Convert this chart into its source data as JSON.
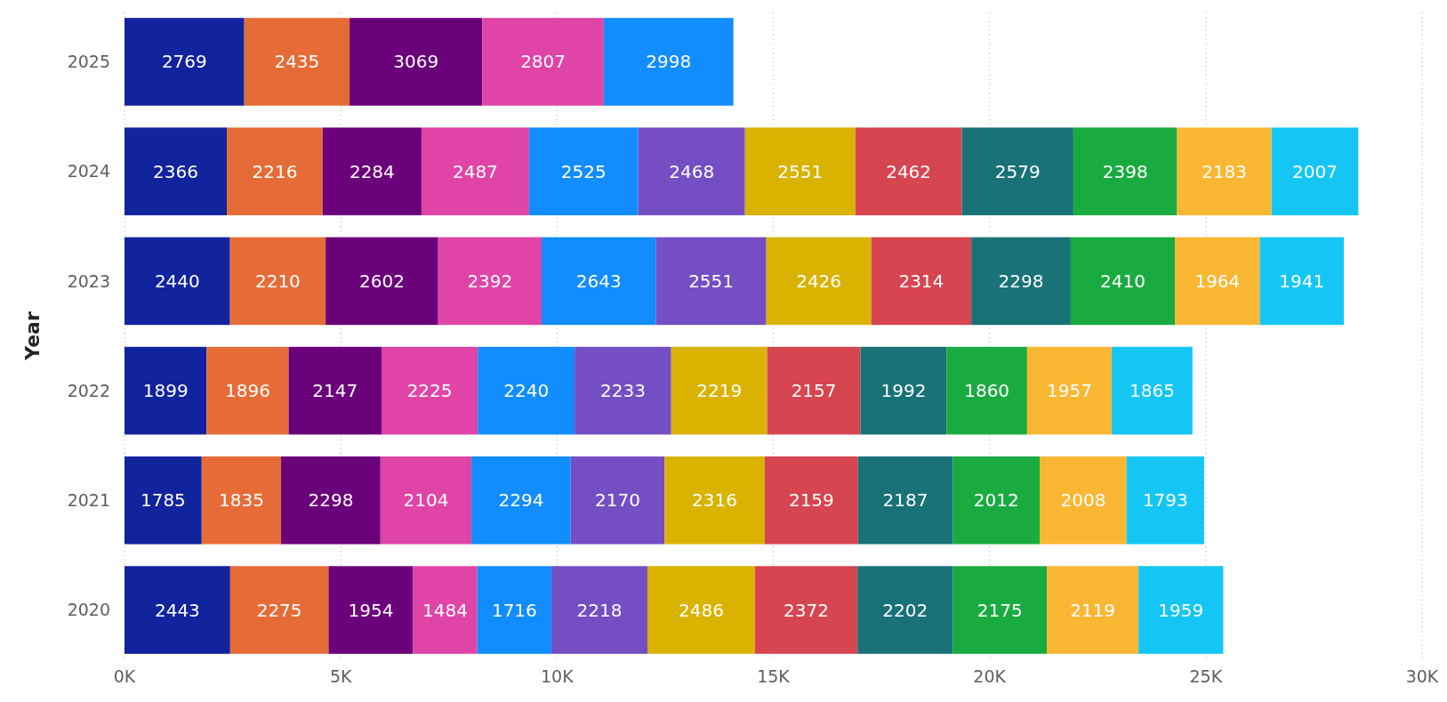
{
  "chart_data": {
    "type": "bar",
    "orientation": "horizontal",
    "stacked": true,
    "ylabel": "Year",
    "categories": [
      "2025",
      "2024",
      "2023",
      "2022",
      "2021",
      "2020"
    ],
    "series": [
      {
        "color": "#12239e",
        "values": [
          2769,
          2366,
          2440,
          1899,
          1785,
          2443
        ]
      },
      {
        "color": "#e66c37",
        "values": [
          2435,
          2216,
          2210,
          1896,
          1835,
          2275
        ]
      },
      {
        "color": "#6b007b",
        "values": [
          3069,
          2284,
          2602,
          2147,
          2298,
          1954
        ]
      },
      {
        "color": "#e044a7",
        "values": [
          2807,
          2487,
          2392,
          2225,
          2104,
          1484
        ]
      },
      {
        "color": "#118dff",
        "values": [
          2998,
          2525,
          2643,
          2240,
          2294,
          1716
        ]
      },
      {
        "color": "#744ec2",
        "values": [
          null,
          2468,
          2551,
          2233,
          2170,
          2218
        ]
      },
      {
        "color": "#d9b300",
        "values": [
          null,
          2551,
          2426,
          2219,
          2316,
          2486
        ]
      },
      {
        "color": "#d64550",
        "values": [
          null,
          2462,
          2314,
          2157,
          2159,
          2372
        ]
      },
      {
        "color": "#197278",
        "values": [
          null,
          2579,
          2298,
          1992,
          2187,
          2202
        ]
      },
      {
        "color": "#1aab40",
        "values": [
          null,
          2398,
          2410,
          1860,
          2012,
          2175
        ]
      },
      {
        "color": "#fab734",
        "values": [
          null,
          2183,
          1964,
          1957,
          2008,
          2119
        ]
      },
      {
        "color": "#15c6f4",
        "values": [
          null,
          2007,
          1941,
          1865,
          1793,
          1959
        ]
      }
    ],
    "xlim": [
      0,
      30000
    ],
    "xticks": [
      {
        "value": 0,
        "label": "0K"
      },
      {
        "value": 5000,
        "label": "5K"
      },
      {
        "value": 10000,
        "label": "10K"
      },
      {
        "value": 15000,
        "label": "15K"
      },
      {
        "value": 20000,
        "label": "20K"
      },
      {
        "value": 25000,
        "label": "25K"
      },
      {
        "value": 30000,
        "label": "30K"
      }
    ],
    "grid": "x",
    "data_labels": true
  }
}
